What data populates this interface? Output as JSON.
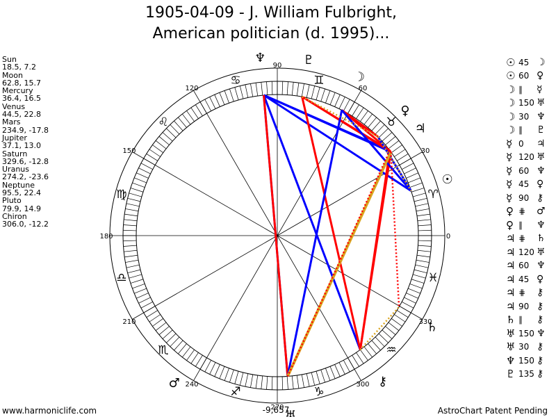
{
  "title": {
    "line1": "1905-04-09 - J. William Fulbright,",
    "line2": "American politician (d. 1995)..."
  },
  "planets": [
    {
      "name": "Sun",
      "coords": "18.5, 7.2",
      "glyph": "☉",
      "icon": "sun-icon"
    },
    {
      "name": "Moon",
      "coords": "62.8, 15.7",
      "glyph": "☽",
      "icon": "moon-icon"
    },
    {
      "name": "Mercury",
      "coords": "36.4, 16.5",
      "glyph": "☿",
      "icon": "mercury-icon"
    },
    {
      "name": "Venus",
      "coords": "44.5, 22.8",
      "glyph": "♀",
      "icon": "venus-icon"
    },
    {
      "name": "Mars",
      "coords": "234.9, -17.8",
      "glyph": "♂",
      "icon": "mars-icon"
    },
    {
      "name": "Jupiter",
      "coords": "37.1, 13.0",
      "glyph": "♃",
      "icon": "jupiter-icon"
    },
    {
      "name": "Saturn",
      "coords": "329.6, -12.8",
      "glyph": "♄",
      "icon": "saturn-icon"
    },
    {
      "name": "Uranus",
      "coords": "274.2, -23.6",
      "glyph": "♅",
      "icon": "uranus-icon"
    },
    {
      "name": "Neptune",
      "coords": "95.5, 22.4",
      "glyph": "♆",
      "icon": "neptune-icon"
    },
    {
      "name": "Pluto",
      "coords": "79.9, 14.9",
      "glyph": "♇",
      "icon": "pluto-icon"
    },
    {
      "name": "Chiron",
      "coords": "306.0, -12.2",
      "glyph": "⚷",
      "icon": "chiron-icon"
    }
  ],
  "aspects": [
    {
      "p1": "☉",
      "sym": "45",
      "p2": "☽"
    },
    {
      "p1": "☉",
      "sym": "60",
      "p2": "♀"
    },
    {
      "p1": "☽",
      "sym": "∥",
      "p2": "☿"
    },
    {
      "p1": "☽",
      "sym": "150",
      "p2": "♅"
    },
    {
      "p1": "☽",
      "sym": "30",
      "p2": "♆"
    },
    {
      "p1": "☽",
      "sym": "∥",
      "p2": "♇"
    },
    {
      "p1": "☿",
      "sym": "0",
      "p2": "♃"
    },
    {
      "p1": "☿",
      "sym": "120",
      "p2": "♅"
    },
    {
      "p1": "☿",
      "sym": "60",
      "p2": "♆"
    },
    {
      "p1": "☿",
      "sym": "45",
      "p2": "♀"
    },
    {
      "p1": "☿",
      "sym": "90",
      "p2": "⚷"
    },
    {
      "p1": "♀",
      "sym": "⋕",
      "p2": "♂"
    },
    {
      "p1": "♀",
      "sym": "∥",
      "p2": "♆"
    },
    {
      "p1": "♃",
      "sym": "⋕",
      "p2": "♄"
    },
    {
      "p1": "♃",
      "sym": "120",
      "p2": "♅"
    },
    {
      "p1": "♃",
      "sym": "60",
      "p2": "♆"
    },
    {
      "p1": "♃",
      "sym": "45",
      "p2": "♀"
    },
    {
      "p1": "♃",
      "sym": "⋕",
      "p2": "⚷"
    },
    {
      "p1": "♃",
      "sym": "90",
      "p2": "⚷"
    },
    {
      "p1": "♄",
      "sym": "∥",
      "p2": "⚷"
    },
    {
      "p1": "♅",
      "sym": "150",
      "p2": "♆"
    },
    {
      "p1": "♅",
      "sym": "30",
      "p2": "⚷"
    },
    {
      "p1": "♆",
      "sym": "150",
      "p2": "⚷"
    },
    {
      "p1": "♇",
      "sym": "135",
      "p2": "⚷"
    }
  ],
  "wheel": {
    "degree_labels": [
      "0",
      "30",
      "60",
      "90",
      "120",
      "150",
      "180",
      "210",
      "240",
      "270",
      "300",
      "330"
    ],
    "signs": [
      "♈",
      "♉",
      "♊",
      "♋",
      "♌",
      "♍",
      "♎",
      "♏",
      "♐",
      "♑",
      "♒",
      "♓"
    ],
    "bottom_readout": "-9,657",
    "chart_glyphs": [
      {
        "glyph": "☉",
        "deg": 18.5
      },
      {
        "glyph": "☽",
        "deg": 62.8
      },
      {
        "glyph": "♀",
        "deg": 44.5
      },
      {
        "glyph": "♃",
        "deg": 37.1
      },
      {
        "glyph": "♆",
        "deg": 95.5
      },
      {
        "glyph": "♇",
        "deg": 79.9
      },
      {
        "glyph": "♂",
        "deg": 234.9
      },
      {
        "glyph": "♅",
        "deg": 274.2
      },
      {
        "glyph": "⚷",
        "deg": 306.0
      },
      {
        "glyph": "♄",
        "deg": 329.6
      }
    ],
    "aspect_lines": [
      {
        "from": 95.5,
        "to": 306.0,
        "color": "#0000ff",
        "style": "solid"
      },
      {
        "from": 95.5,
        "to": 37.1,
        "color": "#0000ff",
        "style": "solid"
      },
      {
        "from": 95.5,
        "to": 36.4,
        "color": "#0000ff",
        "style": "solid"
      },
      {
        "from": 95.5,
        "to": 18.5,
        "color": "#0000ff",
        "style": "solid"
      },
      {
        "from": 95.5,
        "to": 274.2,
        "color": "#0000ff",
        "style": "solid"
      },
      {
        "from": 79.9,
        "to": 37.1,
        "color": "#ff0000",
        "style": "solid"
      },
      {
        "from": 79.9,
        "to": 36.4,
        "color": "#ff0000",
        "style": "solid"
      },
      {
        "from": 79.9,
        "to": 306.0,
        "color": "#ff0000",
        "style": "solid"
      },
      {
        "from": 95.5,
        "to": 274.2,
        "color": "#ff0000",
        "style": "solid"
      },
      {
        "from": 62.8,
        "to": 44.5,
        "color": "#ff0000",
        "style": "solid"
      },
      {
        "from": 62.8,
        "to": 36.4,
        "color": "#ff0000",
        "style": "solid"
      },
      {
        "from": 36.4,
        "to": 306.0,
        "color": "#ff0000",
        "style": "solid"
      },
      {
        "from": 37.1,
        "to": 306.0,
        "color": "#ff0000",
        "style": "solid"
      },
      {
        "from": 62.8,
        "to": 274.2,
        "color": "#0000ff",
        "style": "solid"
      },
      {
        "from": 18.5,
        "to": 62.8,
        "color": "#0000ff",
        "style": "solid"
      },
      {
        "from": 18.5,
        "to": 44.5,
        "color": "#0000ff",
        "style": "solid"
      },
      {
        "from": 36.4,
        "to": 274.2,
        "color": "#daa520",
        "style": "solid"
      },
      {
        "from": 37.1,
        "to": 274.2,
        "color": "#ff0000",
        "style": "dotted"
      },
      {
        "from": 36.4,
        "to": 329.6,
        "color": "#ff0000",
        "style": "dotted"
      },
      {
        "from": 306.0,
        "to": 329.6,
        "color": "#daa520",
        "style": "dotted"
      },
      {
        "from": 79.9,
        "to": 44.5,
        "color": "#daa520",
        "style": "dotted"
      },
      {
        "from": 44.5,
        "to": 18.5,
        "color": "#daa520",
        "style": "dotted"
      }
    ]
  },
  "footer": {
    "left": "www.harmoniclife.com",
    "right": "AstroChart Patent Pending"
  },
  "colors": {
    "aspect_red": "#ff0000",
    "aspect_blue": "#0000ff",
    "aspect_gold": "#daa520"
  }
}
